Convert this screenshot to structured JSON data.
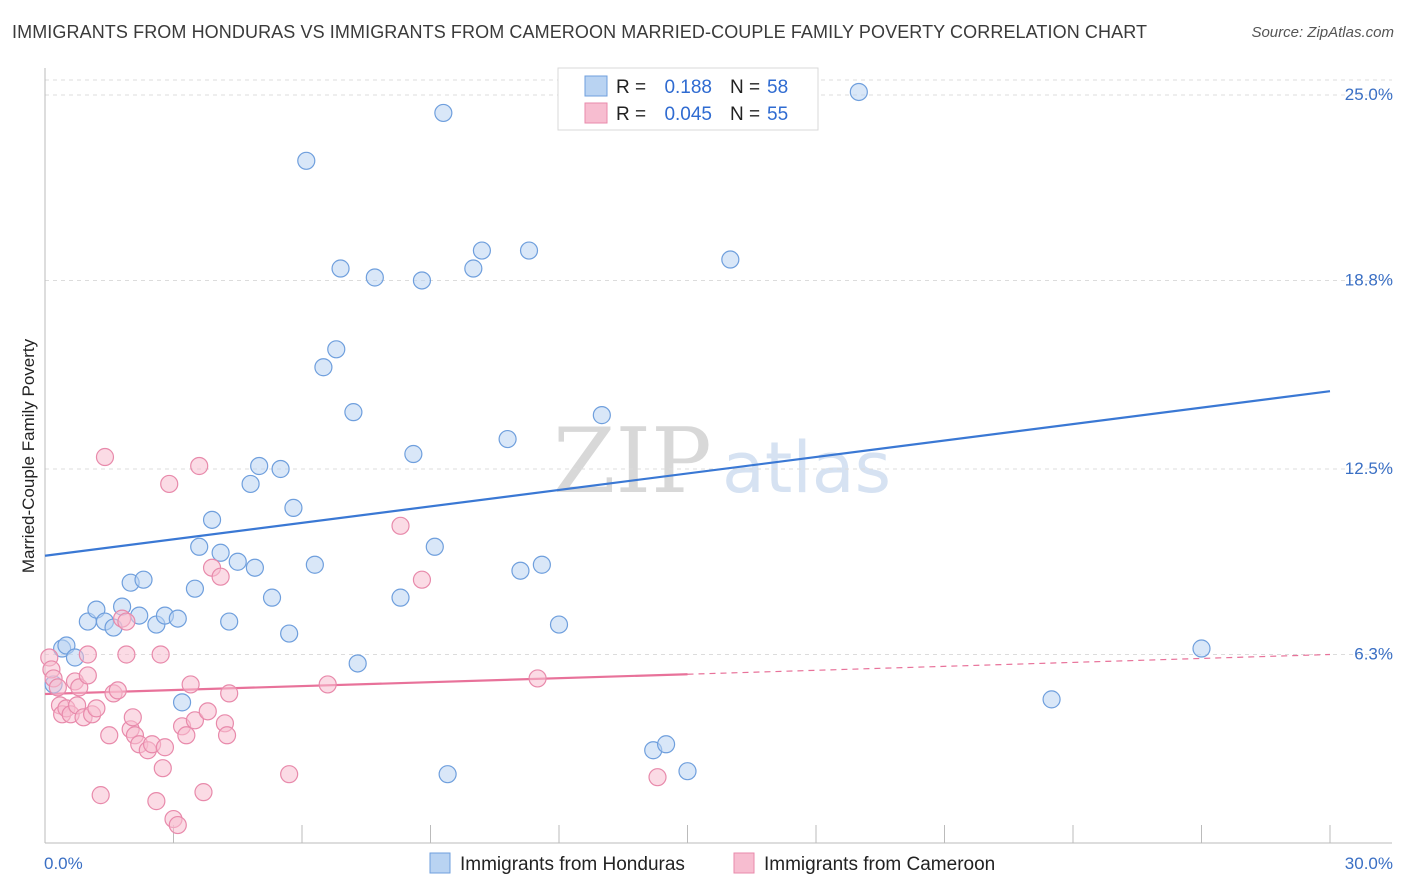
{
  "title": "IMMIGRANTS FROM HONDURAS VS IMMIGRANTS FROM CAMEROON MARRIED-COUPLE FAMILY POVERTY CORRELATION CHART",
  "source": "Source: ZipAtlas.com",
  "watermark": {
    "zip": "ZIP",
    "atlas": "atlas"
  },
  "colors": {
    "blue": "#3a78d4",
    "blue_fill": "#b9d3f2",
    "pink": "#e8729a",
    "pink_fill": "#f7bdd0",
    "tick": "#3a6fc4"
  },
  "chart_data": {
    "type": "scatter",
    "title": "IMMIGRANTS FROM HONDURAS VS IMMIGRANTS FROM CAMEROON MARRIED-COUPLE FAMILY POVERTY CORRELATION CHART",
    "xlabel": "",
    "ylabel": "Married-Couple Family Poverty",
    "xlim": [
      0,
      30
    ],
    "ylim": [
      0,
      25.5
    ],
    "x_tick_labels": [
      {
        "value": 0,
        "label": "0.0%"
      },
      {
        "value": 30,
        "label": "30.0%"
      }
    ],
    "y_tick_labels": [
      {
        "value": 6.3,
        "label": "6.3%"
      },
      {
        "value": 12.5,
        "label": "12.5%"
      },
      {
        "value": 18.8,
        "label": "18.8%"
      },
      {
        "value": 25.0,
        "label": "25.0%"
      }
    ],
    "legend": [
      {
        "series": "Immigrants from Honduras",
        "r_label": "R =",
        "r_value": "0.188",
        "n_label": "N =",
        "n_value": "58"
      },
      {
        "series": "Immigrants from Cameroon",
        "r_label": "R =",
        "r_value": "0.045",
        "n_label": "N =",
        "n_value": "55"
      }
    ],
    "series": [
      {
        "name": "Immigrants from Honduras",
        "color": "#3a78d4",
        "trend": {
          "x": [
            0,
            30
          ],
          "y": [
            9.6,
            15.1
          ],
          "dashed_from": null
        },
        "points": [
          [
            0.2,
            5.3
          ],
          [
            0.4,
            6.5
          ],
          [
            0.5,
            6.6
          ],
          [
            0.7,
            6.2
          ],
          [
            1.0,
            7.4
          ],
          [
            1.2,
            7.8
          ],
          [
            1.4,
            7.4
          ],
          [
            1.6,
            7.2
          ],
          [
            1.8,
            7.9
          ],
          [
            2.0,
            8.7
          ],
          [
            2.2,
            7.6
          ],
          [
            2.3,
            8.8
          ],
          [
            2.6,
            7.3
          ],
          [
            2.8,
            7.6
          ],
          [
            3.1,
            7.5
          ],
          [
            3.2,
            4.7
          ],
          [
            3.5,
            8.5
          ],
          [
            3.6,
            9.9
          ],
          [
            3.9,
            10.8
          ],
          [
            4.1,
            9.7
          ],
          [
            4.3,
            7.4
          ],
          [
            4.5,
            9.4
          ],
          [
            4.8,
            12.0
          ],
          [
            4.9,
            9.2
          ],
          [
            5.0,
            12.6
          ],
          [
            5.3,
            8.2
          ],
          [
            5.5,
            12.5
          ],
          [
            5.7,
            7.0
          ],
          [
            5.8,
            11.2
          ],
          [
            6.1,
            22.8
          ],
          [
            6.3,
            9.3
          ],
          [
            6.5,
            15.9
          ],
          [
            6.8,
            16.5
          ],
          [
            6.9,
            19.2
          ],
          [
            7.2,
            14.4
          ],
          [
            7.3,
            6.0
          ],
          [
            7.7,
            18.9
          ],
          [
            8.3,
            8.2
          ],
          [
            8.6,
            13.0
          ],
          [
            8.8,
            18.8
          ],
          [
            9.1,
            9.9
          ],
          [
            9.3,
            24.4
          ],
          [
            9.4,
            2.3
          ],
          [
            10.0,
            19.2
          ],
          [
            10.2,
            19.8
          ],
          [
            10.8,
            13.5
          ],
          [
            11.1,
            9.1
          ],
          [
            11.3,
            19.8
          ],
          [
            11.6,
            9.3
          ],
          [
            12.0,
            7.3
          ],
          [
            13.0,
            14.3
          ],
          [
            14.2,
            3.1
          ],
          [
            14.5,
            3.3
          ],
          [
            15.0,
            2.4
          ],
          [
            16.0,
            19.5
          ],
          [
            19.0,
            25.1
          ],
          [
            23.5,
            4.8
          ],
          [
            27.0,
            6.5
          ]
        ]
      },
      {
        "name": "Immigrants from Cameroon",
        "color": "#e8729a",
        "trend": {
          "x": [
            0,
            30
          ],
          "y": [
            4.98,
            6.3
          ],
          "dashed_from": 15.0
        },
        "points": [
          [
            0.1,
            6.2
          ],
          [
            0.15,
            5.8
          ],
          [
            0.2,
            5.5
          ],
          [
            0.3,
            5.2
          ],
          [
            0.35,
            4.6
          ],
          [
            0.4,
            4.3
          ],
          [
            0.5,
            4.5
          ],
          [
            0.6,
            4.3
          ],
          [
            0.7,
            5.4
          ],
          [
            0.75,
            4.6
          ],
          [
            0.8,
            5.2
          ],
          [
            0.9,
            4.2
          ],
          [
            1.0,
            6.3
          ],
          [
            1.0,
            5.6
          ],
          [
            1.1,
            4.3
          ],
          [
            1.2,
            4.5
          ],
          [
            1.3,
            1.6
          ],
          [
            1.4,
            12.9
          ],
          [
            1.5,
            3.6
          ],
          [
            1.6,
            5.0
          ],
          [
            1.7,
            5.1
          ],
          [
            1.8,
            7.5
          ],
          [
            1.9,
            7.4
          ],
          [
            1.9,
            6.3
          ],
          [
            2.0,
            3.8
          ],
          [
            2.05,
            4.2
          ],
          [
            2.1,
            3.6
          ],
          [
            2.2,
            3.3
          ],
          [
            2.4,
            3.1
          ],
          [
            2.5,
            3.3
          ],
          [
            2.6,
            1.4
          ],
          [
            2.7,
            6.3
          ],
          [
            2.75,
            2.5
          ],
          [
            2.8,
            3.2
          ],
          [
            2.9,
            12.0
          ],
          [
            3.0,
            0.8
          ],
          [
            3.1,
            0.6
          ],
          [
            3.2,
            3.9
          ],
          [
            3.3,
            3.6
          ],
          [
            3.4,
            5.3
          ],
          [
            3.5,
            4.1
          ],
          [
            3.6,
            12.6
          ],
          [
            3.7,
            1.7
          ],
          [
            3.8,
            4.4
          ],
          [
            3.9,
            9.2
          ],
          [
            4.1,
            8.9
          ],
          [
            4.2,
            4.0
          ],
          [
            4.25,
            3.6
          ],
          [
            4.3,
            5.0
          ],
          [
            5.7,
            2.3
          ],
          [
            6.6,
            5.3
          ],
          [
            8.3,
            10.6
          ],
          [
            8.8,
            8.8
          ],
          [
            11.5,
            5.5
          ],
          [
            14.3,
            2.2
          ]
        ]
      }
    ]
  }
}
